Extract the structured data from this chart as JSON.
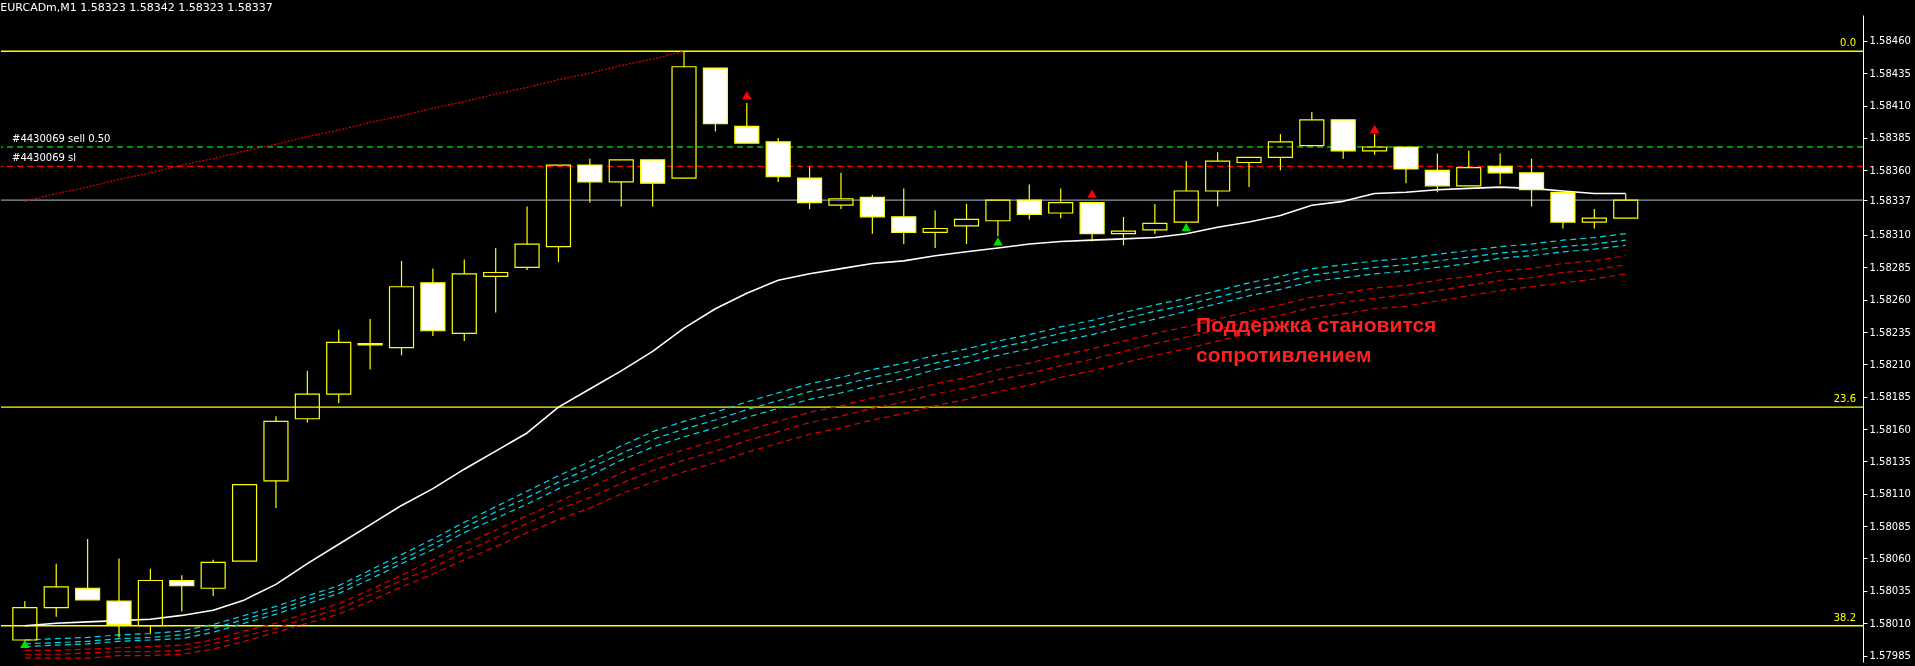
{
  "chart_data": {
    "type": "candlestick",
    "title": "EURCADm,M1  1.58323 1.58342 1.58323 1.58337",
    "categories": [
      null,
      null,
      null,
      null,
      null,
      null,
      null,
      null,
      null,
      null,
      null,
      null,
      null,
      null,
      null,
      null,
      null,
      null,
      null,
      null,
      null,
      null,
      null,
      null,
      null,
      null,
      null,
      null,
      null,
      null,
      null,
      null,
      null,
      null,
      null,
      null,
      null,
      null,
      null,
      null,
      null,
      null,
      null,
      null,
      null,
      null,
      null,
      null,
      null,
      null,
      null,
      null
    ],
    "ylim": [
      1.5798,
      1.5848
    ],
    "yticks": [
      {
        "value": 1.5846,
        "label": "1.58460"
      },
      1.58435,
      {
        "value": 1.5841,
        "label": "1.58410"
      },
      1.58385,
      {
        "value": 1.5836,
        "label": "1.58360"
      },
      1.58337,
      {
        "value": 1.5831,
        "label": "1.58310"
      },
      1.58285,
      {
        "value": 1.5826,
        "label": "1.58260"
      },
      1.58235,
      {
        "value": 1.5821,
        "label": "1.58210"
      },
      1.58185,
      {
        "value": 1.5816,
        "label": "1.58160"
      },
      1.58135,
      {
        "value": 1.5811,
        "label": "1.58110"
      },
      1.58085,
      {
        "value": 1.5806,
        "label": "1.58060"
      },
      1.58035,
      {
        "value": 1.5801,
        "label": "1.58010"
      },
      1.57985
    ],
    "tick_labels": "y",
    "series": [
      {
        "type": "line",
        "color": "#00d8e6",
        "line_style": "dashed",
        "values": [
          1.57997,
          1.57998,
          1.57999,
          1.58001,
          1.58002,
          1.58004,
          1.58009,
          1.58016,
          1.58023,
          1.58031,
          1.58039,
          1.58051,
          1.58063,
          1.58075,
          1.58088,
          1.581,
          1.58112,
          1.58124,
          1.58135,
          1.58147,
          1.58158,
          1.58166,
          1.58173,
          1.58181,
          1.58188,
          1.58195,
          1.582,
          1.58206,
          1.58211,
          1.58217,
          1.58222,
          1.58228,
          1.58233,
          1.58239,
          1.58244,
          1.5825,
          1.58256,
          1.58261,
          1.58267,
          1.58273,
          1.58278,
          1.58284,
          1.58287,
          1.5829,
          1.58292,
          1.58295,
          1.58298,
          1.58301,
          1.58303,
          1.58306,
          1.58308,
          1.58311
        ]
      },
      {
        "type": "line",
        "color": "#00d8e6",
        "line_style": "dashed",
        "values": [
          1.57994,
          1.57995,
          1.57996,
          1.57998,
          1.57999,
          1.58001,
          1.58006,
          1.58013,
          1.5802,
          1.58028,
          1.58036,
          1.58048,
          1.58059,
          1.58071,
          1.58084,
          1.58096,
          1.58107,
          1.58119,
          1.5813,
          1.58141,
          1.58152,
          1.5816,
          1.58167,
          1.58175,
          1.58182,
          1.58189,
          1.58194,
          1.582,
          1.58205,
          1.58211,
          1.58216,
          1.58223,
          1.58228,
          1.58234,
          1.58239,
          1.58245,
          1.58251,
          1.58256,
          1.58262,
          1.58268,
          1.58273,
          1.58279,
          1.58282,
          1.58285,
          1.58287,
          1.5829,
          1.58293,
          1.58296,
          1.58298,
          1.58301,
          1.58303,
          1.58306
        ]
      },
      {
        "type": "line",
        "color": "#00d8e6",
        "line_style": "dashed",
        "values": [
          1.57992,
          1.57993,
          1.57994,
          1.57996,
          1.57997,
          1.57998,
          1.58003,
          1.5801,
          1.58017,
          1.58025,
          1.58033,
          1.58044,
          1.58056,
          1.58067,
          1.5808,
          1.58091,
          1.58102,
          1.58114,
          1.58124,
          1.58136,
          1.58146,
          1.58154,
          1.58161,
          1.58169,
          1.58176,
          1.58183,
          1.58188,
          1.58194,
          1.58199,
          1.58206,
          1.58211,
          1.58217,
          1.58222,
          1.58228,
          1.58233,
          1.58239,
          1.58245,
          1.58251,
          1.58257,
          1.58263,
          1.58268,
          1.58274,
          1.58277,
          1.5828,
          1.58282,
          1.58285,
          1.58288,
          1.58292,
          1.58294,
          1.58297,
          1.58299,
          1.58302
        ]
      },
      {
        "type": "line",
        "color": "#e00000",
        "line_style": "dashed",
        "values": [
          1.57989,
          1.57989,
          1.5799,
          1.57991,
          1.57992,
          1.57993,
          1.57997,
          1.58004,
          1.5801,
          1.58018,
          1.58025,
          1.58036,
          1.58047,
          1.58059,
          1.58071,
          1.58082,
          1.58093,
          1.58104,
          1.58115,
          1.58126,
          1.58136,
          1.58144,
          1.58151,
          1.58159,
          1.58166,
          1.58173,
          1.58178,
          1.58184,
          1.58189,
          1.58195,
          1.582,
          1.58206,
          1.58211,
          1.58217,
          1.58222,
          1.58228,
          1.58234,
          1.58239,
          1.58245,
          1.58251,
          1.58256,
          1.58262,
          1.58265,
          1.58269,
          1.58271,
          1.58275,
          1.58278,
          1.58282,
          1.58284,
          1.58288,
          1.5829,
          1.58294
        ]
      },
      {
        "type": "line",
        "color": "#e00000",
        "line_style": "dashed",
        "values": [
          1.57986,
          1.57986,
          1.57987,
          1.57988,
          1.57988,
          1.57989,
          1.57994,
          1.58,
          1.58006,
          1.58014,
          1.58021,
          1.58032,
          1.58043,
          1.58053,
          1.58065,
          1.58076,
          1.58087,
          1.58098,
          1.58107,
          1.58118,
          1.58128,
          1.58136,
          1.58143,
          1.58151,
          1.58158,
          1.58165,
          1.5817,
          1.58176,
          1.58181,
          1.58187,
          1.58192,
          1.58198,
          1.58203,
          1.58209,
          1.58214,
          1.5822,
          1.58226,
          1.58231,
          1.58237,
          1.58243,
          1.58248,
          1.58254,
          1.58258,
          1.58261,
          1.58264,
          1.58267,
          1.58271,
          1.58275,
          1.58277,
          1.58281,
          1.58283,
          1.58287
        ]
      },
      {
        "type": "line",
        "color": "#e00000",
        "line_style": "dashed",
        "values": [
          1.57983,
          1.57983,
          1.57983,
          1.57985,
          1.57985,
          1.57986,
          1.5799,
          1.57996,
          1.58003,
          1.5801,
          1.58017,
          1.58027,
          1.58038,
          1.58048,
          1.58059,
          1.58069,
          1.5808,
          1.5809,
          1.58099,
          1.5811,
          1.58119,
          1.58127,
          1.58134,
          1.58142,
          1.58149,
          1.58156,
          1.58161,
          1.58167,
          1.58172,
          1.58178,
          1.58183,
          1.58189,
          1.58194,
          1.582,
          1.58205,
          1.58211,
          1.58217,
          1.58222,
          1.58228,
          1.58234,
          1.58239,
          1.58245,
          1.58249,
          1.58253,
          1.58255,
          1.58259,
          1.58263,
          1.58267,
          1.5827,
          1.58273,
          1.58276,
          1.5828
        ]
      },
      {
        "type": "line",
        "color": "#ffffff",
        "line_style": "solid",
        "values": [
          1.58008,
          1.5801,
          1.58011,
          1.58012,
          1.58013,
          1.58016,
          1.5802,
          1.58028,
          1.5804,
          1.58056,
          1.58071,
          1.58086,
          1.58101,
          1.58114,
          1.58129,
          1.58143,
          1.58157,
          1.58177,
          1.58191,
          1.58205,
          1.5822,
          1.58238,
          1.58253,
          1.58265,
          1.58275,
          1.5828,
          1.58284,
          1.58288,
          1.5829,
          1.58294,
          1.58297,
          1.583,
          1.58303,
          1.58305,
          1.58306,
          1.58307,
          1.58308,
          1.58311,
          1.58316,
          1.5832,
          1.58325,
          1.58333,
          1.58336,
          1.58342,
          1.58343,
          1.58345,
          1.58346,
          1.58347,
          1.58346,
          1.58344,
          1.58342,
          1.58342
        ]
      },
      {
        "type": "line",
        "color": "#e00000",
        "line_style": "dotted",
        "values": [
          1.58336,
          1.58342,
          1.58347,
          1.58353,
          1.58358,
          1.58364,
          1.58369,
          1.58375,
          1.5838,
          1.58386,
          1.58391,
          1.58397,
          1.58402,
          1.58408,
          1.58413,
          1.58419,
          1.58424,
          1.5843,
          1.58435,
          1.58441,
          1.58446,
          1.58452,
          null,
          null,
          null,
          null,
          null,
          null,
          null,
          null,
          null,
          null,
          null,
          null,
          null,
          null,
          null,
          null,
          null,
          null,
          null,
          null,
          null,
          null,
          null,
          null,
          null,
          null,
          null,
          null,
          null,
          null
        ]
      },
      {
        "type": "scatter",
        "color": "#ff0000",
        "marker": "triangle",
        "values": [
          null,
          null,
          null,
          null,
          null,
          null,
          null,
          null,
          null,
          null,
          null,
          null,
          null,
          null,
          null,
          null,
          null,
          null,
          null,
          null,
          null,
          null,
          null,
          1.58418,
          null,
          null,
          null,
          null,
          null,
          null,
          null,
          null,
          null,
          null,
          1.58342,
          null,
          null,
          null,
          null,
          null,
          null,
          null,
          null,
          1.58392,
          null,
          null,
          null,
          null,
          null,
          null,
          null,
          null
        ]
      },
      {
        "type": "scatter",
        "color": "#00e000",
        "marker": "triangle",
        "values": [
          1.57994,
          null,
          null,
          null,
          null,
          null,
          null,
          null,
          null,
          null,
          null,
          null,
          null,
          null,
          null,
          null,
          null,
          null,
          null,
          null,
          null,
          null,
          null,
          null,
          null,
          null,
          null,
          null,
          null,
          null,
          null,
          1.58305,
          null,
          null,
          null,
          null,
          null,
          1.58316,
          null,
          null,
          null,
          null,
          null,
          null,
          null,
          null,
          null,
          null,
          null,
          null,
          null,
          null
        ]
      },
      {
        "type": "candlestick",
        "color": "#ffff00",
        "ohlc": [
          [
            1.57997,
            1.58027,
            1.57997,
            1.58022
          ],
          [
            1.58022,
            1.58056,
            1.58015,
            1.58038
          ],
          [
            1.58037,
            1.58075,
            1.58028,
            1.58028
          ],
          [
            1.58027,
            1.5806,
            1.57999,
            1.58009
          ],
          [
            1.58008,
            1.58052,
            1.58002,
            1.58043
          ],
          [
            1.58043,
            1.58047,
            1.58019,
            1.58039
          ],
          [
            1.58037,
            1.58059,
            1.58031,
            1.58057
          ],
          [
            1.58058,
            1.58117,
            1.58058,
            1.58117
          ],
          [
            1.5812,
            1.5817,
            1.58099,
            1.58166
          ],
          [
            1.58168,
            1.58205,
            1.58165,
            1.58187
          ],
          [
            1.58187,
            1.58237,
            1.5818,
            1.58227
          ],
          [
            1.58226,
            1.58245,
            1.58206,
            1.58225
          ],
          [
            1.58223,
            1.5829,
            1.58217,
            1.5827
          ],
          [
            1.58273,
            1.58284,
            1.58232,
            1.58236
          ],
          [
            1.58234,
            1.58291,
            1.58228,
            1.5828
          ],
          [
            1.58278,
            1.583,
            1.5825,
            1.58281
          ],
          [
            1.58285,
            1.58332,
            1.58283,
            1.58303
          ],
          [
            1.58301,
            1.58364,
            1.58289,
            1.58364
          ],
          [
            1.58364,
            1.58369,
            1.58335,
            1.58351
          ],
          [
            1.58351,
            1.58368,
            1.58332,
            1.58368
          ],
          [
            1.58368,
            1.58368,
            1.58332,
            1.5835
          ],
          [
            1.58354,
            1.58452,
            1.58354,
            1.5844
          ],
          [
            1.58439,
            1.58439,
            1.5839,
            1.58396
          ],
          [
            1.58394,
            1.58412,
            1.58381,
            1.58381
          ],
          [
            1.58382,
            1.58385,
            1.58351,
            1.58355
          ],
          [
            1.58354,
            1.58363,
            1.5833,
            1.58335
          ],
          [
            1.58333,
            1.58358,
            1.5833,
            1.58338
          ],
          [
            1.58339,
            1.58341,
            1.58311,
            1.58324
          ],
          [
            1.58324,
            1.58346,
            1.58303,
            1.58312
          ],
          [
            1.58312,
            1.58329,
            1.583,
            1.58315
          ],
          [
            1.58317,
            1.58334,
            1.58303,
            1.58322
          ],
          [
            1.58321,
            1.58337,
            1.58309,
            1.58337
          ],
          [
            1.58337,
            1.58349,
            1.58322,
            1.58326
          ],
          [
            1.58327,
            1.58346,
            1.58323,
            1.58335
          ],
          [
            1.58335,
            1.58335,
            1.58305,
            1.58311
          ],
          [
            1.58311,
            1.58324,
            1.58302,
            1.58313
          ],
          [
            1.58314,
            1.58334,
            1.58311,
            1.58319
          ],
          [
            1.5832,
            1.58367,
            1.5832,
            1.58344
          ],
          [
            1.58344,
            1.58374,
            1.58332,
            1.58367
          ],
          [
            1.58366,
            1.5837,
            1.58347,
            1.5837
          ],
          [
            1.5837,
            1.58388,
            1.5836,
            1.58382
          ],
          [
            1.58379,
            1.58405,
            1.58379,
            1.58399
          ],
          [
            1.58399,
            1.58399,
            1.58369,
            1.58375
          ],
          [
            1.58375,
            1.58388,
            1.58372,
            1.58378
          ],
          [
            1.58378,
            1.58378,
            1.5835,
            1.58361
          ],
          [
            1.5836,
            1.58373,
            1.58343,
            1.58348
          ],
          [
            1.58348,
            1.58375,
            1.58348,
            1.58362
          ],
          [
            1.58363,
            1.58373,
            1.58349,
            1.58358
          ],
          [
            1.58358,
            1.58369,
            1.58332,
            1.58345
          ],
          [
            1.58343,
            1.58343,
            1.58315,
            1.5832
          ],
          [
            1.5832,
            1.5833,
            1.58315,
            1.58323
          ],
          [
            1.58323,
            1.58342,
            1.58323,
            1.58337
          ]
        ]
      }
    ],
    "ref_lines": [
      {
        "axis": "y",
        "value": 1.58452,
        "color": "#ffff00",
        "line_style": "solid"
      },
      {
        "axis": "y",
        "value": 1.58177,
        "color": "#ffff00",
        "line_style": "solid"
      },
      {
        "axis": "y",
        "value": 1.58008,
        "color": "#ffff00",
        "line_style": "solid"
      },
      {
        "axis": "y",
        "value": 1.58378,
        "label": "#4430069 sell 0.50",
        "color": "#00c000",
        "line_style": "dashed"
      },
      {
        "axis": "y",
        "value": 1.58363,
        "label": "#4430069 sl",
        "color": "#ff0000",
        "line_style": "dashed"
      },
      {
        "axis": "y",
        "value": 1.58337,
        "color": "#8c9aa6",
        "line_style": "solid"
      }
    ],
    "annotations": [
      "Поддержка становится\nсопротивлением",
      {
        "text": "0.0",
        "y": 1.58452
      },
      {
        "text": "23.6",
        "y": 1.58177
      },
      {
        "text": "38.2",
        "y": 1.58008
      }
    ]
  }
}
